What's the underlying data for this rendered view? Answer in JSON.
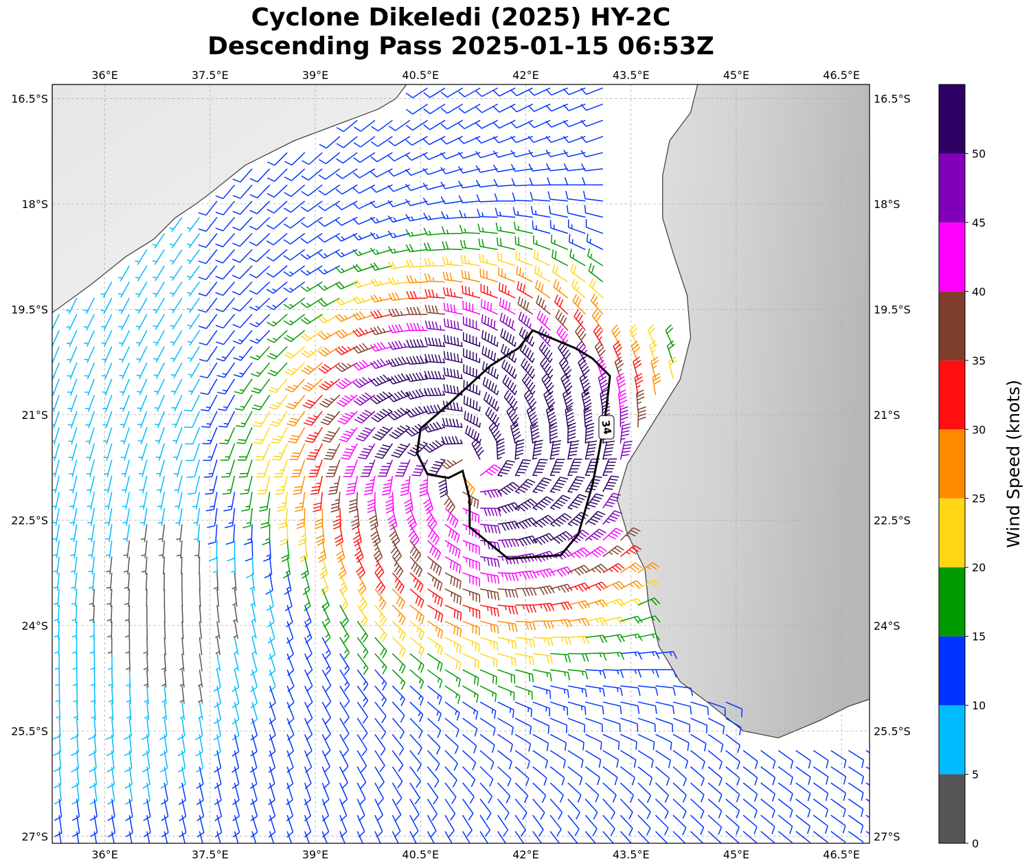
{
  "title": {
    "line1": "Cyclone Dikeledi (2025) HY-2C",
    "line2": "Descending Pass 2025-01-15 06:53Z"
  },
  "map": {
    "lon_range": [
      35.25,
      46.9
    ],
    "lat_range": [
      -27.1,
      -16.3
    ],
    "lon_ticks": [
      {
        "value": 36.0,
        "label": "36°E"
      },
      {
        "value": 37.5,
        "label": "37.5°E"
      },
      {
        "value": 39.0,
        "label": "39°E"
      },
      {
        "value": 40.5,
        "label": "40.5°E"
      },
      {
        "value": 42.0,
        "label": "42°E"
      },
      {
        "value": 43.5,
        "label": "43.5°E"
      },
      {
        "value": 45.0,
        "label": "45°E"
      },
      {
        "value": 46.5,
        "label": "46.5°E"
      }
    ],
    "lat_ticks": [
      {
        "value": -16.5,
        "label": "16.5°S"
      },
      {
        "value": -18.0,
        "label": "18°S"
      },
      {
        "value": -19.5,
        "label": "19.5°S"
      },
      {
        "value": -21.0,
        "label": "21°S"
      },
      {
        "value": -22.5,
        "label": "22.5°S"
      },
      {
        "value": -24.0,
        "label": "24°S"
      },
      {
        "value": -25.5,
        "label": "25.5°S"
      },
      {
        "value": -27.0,
        "label": "27°S"
      }
    ],
    "gridlines": true,
    "contour_label": "34",
    "cyclone_center": {
      "lon": 41.2,
      "lat": -21.75
    },
    "mozambique_coast": [
      [
        35.25,
        -19.55
      ],
      [
        35.8,
        -19.15
      ],
      [
        36.3,
        -18.75
      ],
      [
        36.7,
        -18.5
      ],
      [
        37.0,
        -18.2
      ],
      [
        37.3,
        -18.0
      ],
      [
        37.5,
        -17.85
      ],
      [
        37.75,
        -17.65
      ],
      [
        38.0,
        -17.45
      ],
      [
        38.3,
        -17.3
      ],
      [
        38.7,
        -17.1
      ],
      [
        39.1,
        -16.95
      ],
      [
        39.5,
        -16.8
      ],
      [
        39.9,
        -16.65
      ],
      [
        40.15,
        -16.5
      ],
      [
        40.3,
        -16.3
      ]
    ],
    "madagascar_coast": [
      [
        44.45,
        -16.3
      ],
      [
        44.35,
        -16.7
      ],
      [
        44.05,
        -17.1
      ],
      [
        43.95,
        -17.6
      ],
      [
        43.95,
        -18.2
      ],
      [
        44.1,
        -18.7
      ],
      [
        44.3,
        -19.3
      ],
      [
        44.35,
        -19.9
      ],
      [
        44.2,
        -20.5
      ],
      [
        43.95,
        -20.9
      ],
      [
        43.7,
        -21.3
      ],
      [
        43.45,
        -21.7
      ],
      [
        43.3,
        -22.2
      ],
      [
        43.45,
        -22.7
      ],
      [
        43.7,
        -23.2
      ],
      [
        43.75,
        -23.7
      ],
      [
        43.9,
        -24.3
      ],
      [
        44.2,
        -24.8
      ],
      [
        44.6,
        -25.1
      ],
      [
        45.1,
        -25.5
      ],
      [
        45.6,
        -25.6
      ],
      [
        46.2,
        -25.35
      ],
      [
        46.6,
        -25.15
      ],
      [
        46.9,
        -25.05
      ]
    ],
    "gale_contour": [
      [
        42.1,
        -19.8
      ],
      [
        42.7,
        -20.05
      ],
      [
        42.95,
        -20.2
      ],
      [
        43.2,
        -20.45
      ],
      [
        43.15,
        -20.9
      ],
      [
        43.05,
        -21.5
      ],
      [
        42.95,
        -22.0
      ],
      [
        42.75,
        -22.7
      ],
      [
        42.5,
        -23.0
      ],
      [
        41.75,
        -23.05
      ],
      [
        41.2,
        -22.6
      ],
      [
        41.2,
        -22.2
      ],
      [
        41.1,
        -21.8
      ],
      [
        40.9,
        -21.9
      ],
      [
        40.6,
        -21.85
      ],
      [
        40.45,
        -21.55
      ],
      [
        40.5,
        -21.2
      ],
      [
        40.9,
        -20.85
      ],
      [
        41.5,
        -20.3
      ],
      [
        41.9,
        -20.05
      ],
      [
        42.1,
        -19.8
      ]
    ]
  },
  "colorbar": {
    "label": "Wind Speed (knots)",
    "ticks": [
      "0",
      "5",
      "10",
      "15",
      "20",
      "25",
      "30",
      "35",
      "40",
      "45",
      "50"
    ],
    "bins": [
      {
        "from": 0,
        "to": 5,
        "color": "#555555"
      },
      {
        "from": 5,
        "to": 10,
        "color": "#00bbff"
      },
      {
        "from": 10,
        "to": 15,
        "color": "#0033ff"
      },
      {
        "from": 15,
        "to": 20,
        "color": "#009900"
      },
      {
        "from": 20,
        "to": 25,
        "color": "#ffd614"
      },
      {
        "from": 25,
        "to": 30,
        "color": "#ff8c00"
      },
      {
        "from": 30,
        "to": 35,
        "color": "#ff0f0f"
      },
      {
        "from": 35,
        "to": 40,
        "color": "#7f3d2b"
      },
      {
        "from": 40,
        "to": 45,
        "color": "#ff00ff"
      },
      {
        "from": 45,
        "to": 50,
        "color": "#8000ba"
      },
      {
        "from": 50,
        "to": 55,
        "color": "#2e0063"
      }
    ]
  }
}
